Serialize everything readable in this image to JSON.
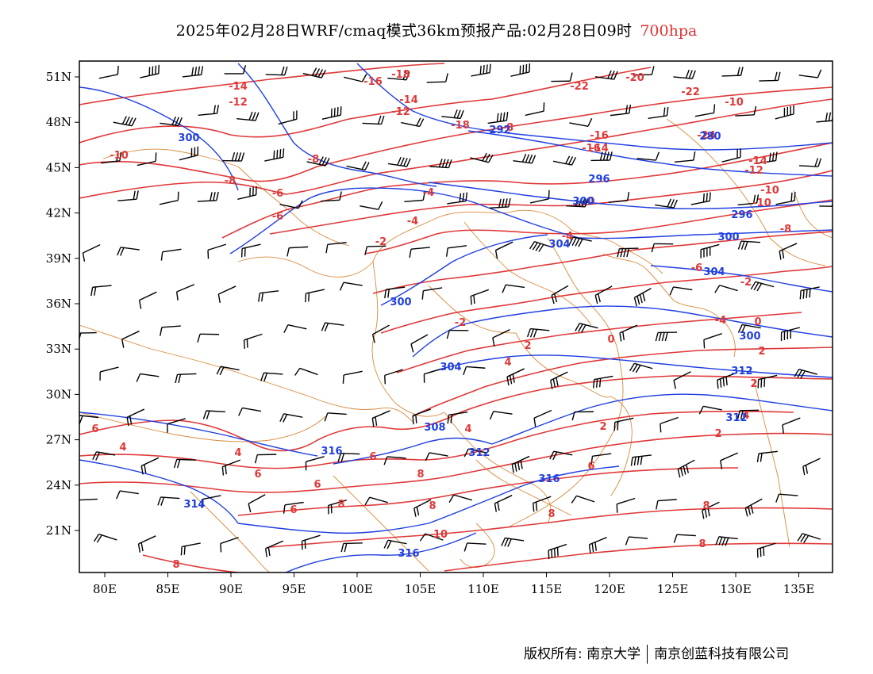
{
  "title": {
    "main": "2025年02月28日WRF/cmaq模式36km预报产品:02月28日09时",
    "level": "700hpa"
  },
  "map": {
    "lon_range": [
      78,
      138
    ],
    "lat_range": [
      18,
      52
    ],
    "lon_ticks": [
      "80E",
      "85E",
      "90E",
      "95E",
      "100E",
      "105E",
      "110E",
      "115E",
      "120E",
      "125E",
      "130E",
      "135E"
    ],
    "lat_ticks": [
      "51N",
      "48N",
      "45N",
      "42N",
      "39N",
      "36N",
      "33N",
      "30N",
      "27N",
      "24N",
      "21N"
    ],
    "temperature_labels": [
      "-10",
      "-14",
      "-12",
      "-16",
      "-18",
      "-14",
      "-12",
      "-22",
      "-20",
      "-24",
      "-22",
      "-10",
      "-8",
      "-18",
      "-16",
      "-14",
      "-16",
      "-14",
      "-8",
      "-12",
      "-10",
      "-10",
      "-8",
      "-6",
      "-4",
      "-6",
      "-4",
      "-2",
      "0",
      "-4",
      "-6",
      "-8",
      "-2",
      "-4",
      "0",
      "-2",
      "2",
      "0",
      "2",
      "4",
      "2",
      "4",
      "2",
      "2",
      "4",
      "6",
      "4",
      "6",
      "4",
      "6",
      "8",
      "6",
      "8",
      "6",
      "8",
      "6",
      "8",
      "8",
      "10",
      "8",
      "8"
    ],
    "height_labels": [
      "300",
      "292",
      "280",
      "296",
      "300",
      "296",
      "300",
      "304",
      "300",
      "304",
      "300",
      "304",
      "312",
      "312",
      "308",
      "312",
      "316",
      "316",
      "314",
      "316"
    ]
  },
  "footer": {
    "copyright": "版权所有: 南京大学",
    "company": "南京创蓝科技有限公司"
  },
  "colors": {
    "temperature": "#e03838",
    "height": "#1f3fe0",
    "border": "#d98a3a",
    "wind": "#000000"
  }
}
